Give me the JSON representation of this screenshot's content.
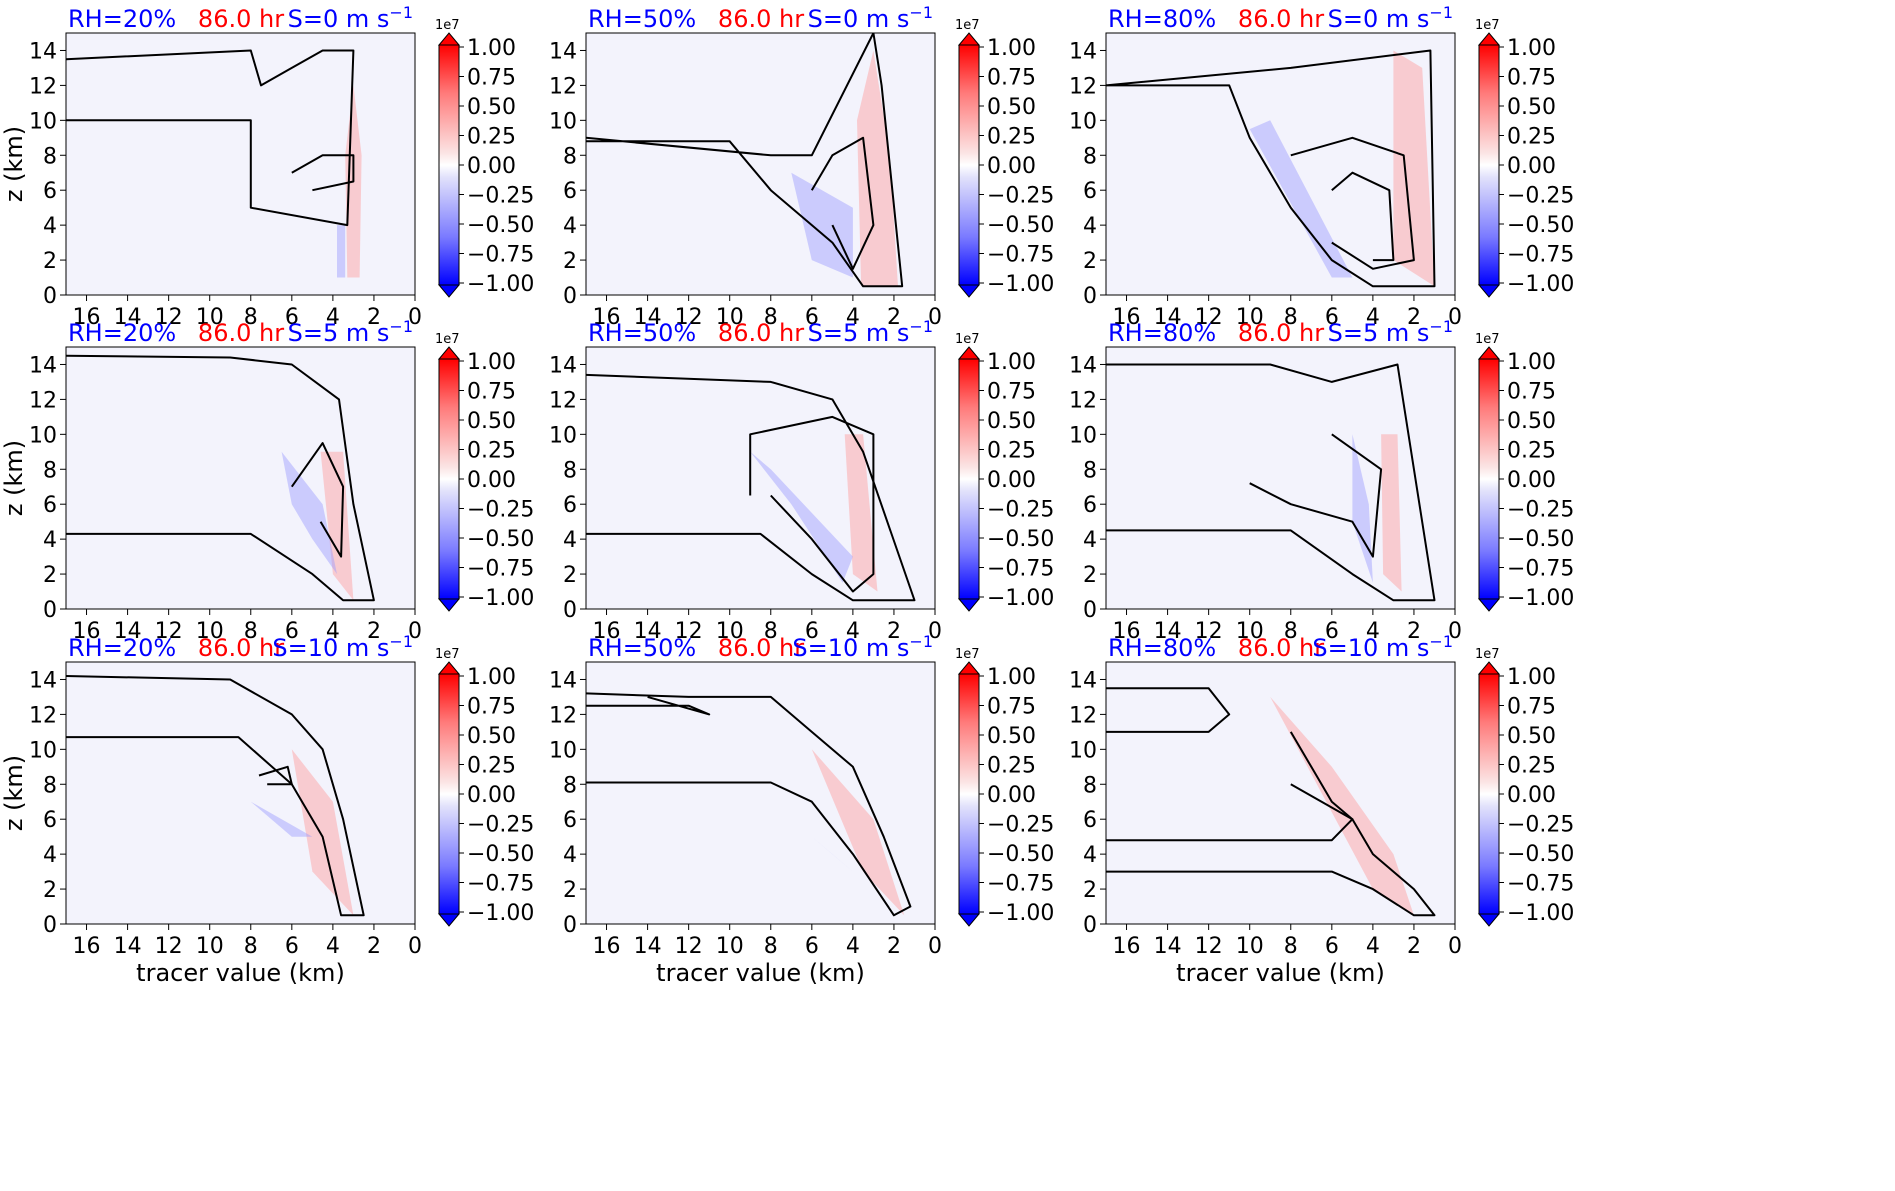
{
  "figure": {
    "xlabel": "tracer value (km)",
    "ylabel": "z (km)",
    "time_label": "86.0 hr",
    "colorbar_exponent": "1e7",
    "colorbar_ticks": [
      "1.00",
      "0.75",
      "0.50",
      "0.25",
      "0.00",
      "−0.25",
      "−0.50",
      "−0.75",
      "−1.00"
    ],
    "x_ticks": [
      "16",
      "14",
      "12",
      "10",
      "8",
      "6",
      "4",
      "2",
      "0"
    ],
    "y_ticks": [
      "0",
      "2",
      "4",
      "6",
      "8",
      "10",
      "12",
      "14"
    ],
    "colors": {
      "rh_label": "#0000ff",
      "time_label": "#ff0000",
      "shear_label": "#0000ff",
      "background": "#f3f3fc",
      "positive": "#ff0000",
      "negative": "#0000ff"
    }
  },
  "chart_data": [
    {
      "type": "heatmap",
      "rh": "RH=20%",
      "shear": "S=0 m s",
      "xlim": [
        17,
        0
      ],
      "ylim": [
        0,
        15
      ],
      "clim": [
        -1.0,
        1.0
      ]
    },
    {
      "type": "heatmap",
      "rh": "RH=50%",
      "shear": "S=0 m s",
      "xlim": [
        17,
        0
      ],
      "ylim": [
        0,
        15
      ],
      "clim": [
        -1.0,
        1.0
      ]
    },
    {
      "type": "heatmap",
      "rh": "RH=80%",
      "shear": "S=0 m s",
      "xlim": [
        17,
        0
      ],
      "ylim": [
        0,
        15
      ],
      "clim": [
        -1.0,
        1.0
      ]
    },
    {
      "type": "heatmap",
      "rh": "RH=20%",
      "shear": "S=5 m s",
      "xlim": [
        17,
        0
      ],
      "ylim": [
        0,
        15
      ],
      "clim": [
        -1.0,
        1.0
      ]
    },
    {
      "type": "heatmap",
      "rh": "RH=50%",
      "shear": "S=5 m s",
      "xlim": [
        17,
        0
      ],
      "ylim": [
        0,
        15
      ],
      "clim": [
        -1.0,
        1.0
      ]
    },
    {
      "type": "heatmap",
      "rh": "RH=80%",
      "shear": "S=5 m s",
      "xlim": [
        17,
        0
      ],
      "ylim": [
        0,
        15
      ],
      "clim": [
        -1.0,
        1.0
      ]
    },
    {
      "type": "heatmap",
      "rh": "RH=20%",
      "shear": "S=10 m s",
      "xlim": [
        17,
        0
      ],
      "ylim": [
        0,
        15
      ],
      "clim": [
        -1.0,
        1.0
      ]
    },
    {
      "type": "heatmap",
      "rh": "RH=50%",
      "shear": "S=10 m s",
      "xlim": [
        17,
        0
      ],
      "ylim": [
        0,
        15
      ],
      "clim": [
        -1.0,
        1.0
      ]
    },
    {
      "type": "heatmap",
      "rh": "RH=80%",
      "shear": "S=10 m s",
      "xlim": [
        17,
        0
      ],
      "ylim": [
        0,
        15
      ],
      "clim": [
        -1.0,
        1.0
      ]
    }
  ]
}
